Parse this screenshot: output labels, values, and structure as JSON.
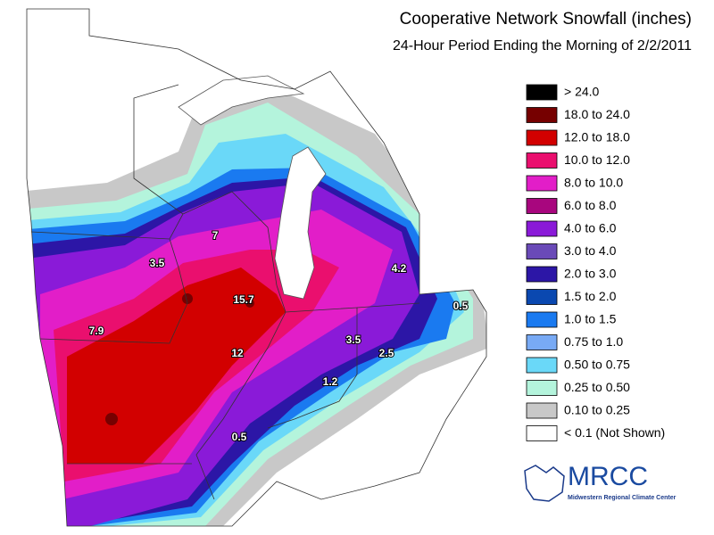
{
  "header": {
    "title": "Cooperative Network Snowfall (inches)",
    "subtitle": "24-Hour Period Ending the Morning of 2/2/2011"
  },
  "legend": {
    "items": [
      {
        "label": "> 24.0",
        "color": "#000000"
      },
      {
        "label": "18.0 to 24.0",
        "color": "#760000"
      },
      {
        "label": "12.0 to 18.0",
        "color": "#d20000"
      },
      {
        "label": "10.0 to 12.0",
        "color": "#ea0f6e"
      },
      {
        "label": "8.0 to 10.0",
        "color": "#e21ec8"
      },
      {
        "label": "6.0 to 8.0",
        "color": "#a8067e"
      },
      {
        "label": "4.0 to 6.0",
        "color": "#8a1ad8"
      },
      {
        "label": "3.0 to 4.0",
        "color": "#6a4ab8"
      },
      {
        "label": "2.0 to 3.0",
        "color": "#2c16a6"
      },
      {
        "label": "1.5 to 2.0",
        "color": "#0a48b0"
      },
      {
        "label": "1.0 to 1.5",
        "color": "#1a7af0"
      },
      {
        "label": "0.75 to 1.0",
        "color": "#78aaf5"
      },
      {
        "label": "0.50 to 0.75",
        "color": "#6ad8f8"
      },
      {
        "label": "0.25 to 0.50",
        "color": "#b4f4dc"
      },
      {
        "label": "0.10 to 0.25",
        "color": "#c8c8c8"
      },
      {
        "label": "< 0.1 (Not Shown)",
        "color": "#ffffff"
      }
    ]
  },
  "map": {
    "annotations": [
      "7",
      "3.5",
      "15.7",
      "7.9",
      "12",
      "3.5",
      "2.5",
      "1.2",
      "0.5",
      "4.2",
      "0.5"
    ]
  },
  "logo": {
    "name": "MRCC",
    "subtitle": "Midwestern Regional Climate Center"
  }
}
